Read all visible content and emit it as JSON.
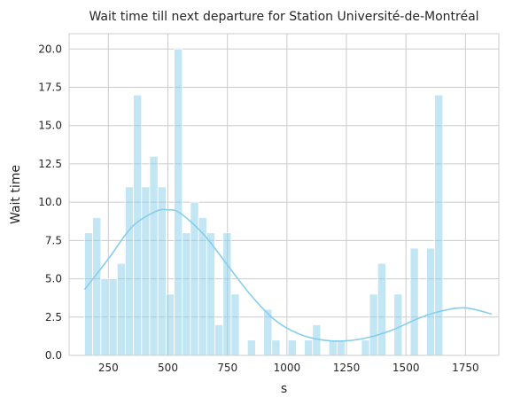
{
  "chart_data": {
    "type": "bar",
    "title": "Wait time till next departure for Station Université-de-Montréal",
    "xlabel": "s",
    "ylabel": "Wait time",
    "xlim": [
      85,
      1890
    ],
    "ylim": [
      0,
      21
    ],
    "grid": true,
    "bar_color": "#87ceeb",
    "kde_color": "#87ceeb",
    "xticks": [
      250,
      500,
      750,
      1000,
      1250,
      1500,
      1750
    ],
    "xtick_labels": [
      "250",
      "500",
      "750",
      "1000",
      "1250",
      "1500",
      "1750"
    ],
    "yticks": [
      0,
      2.5,
      5,
      7.5,
      10,
      12.5,
      15,
      17.5,
      20
    ],
    "ytick_labels": [
      "0.0",
      "2.5",
      "5.0",
      "7.5",
      "10.0",
      "12.5",
      "15.0",
      "17.5",
      "20.0"
    ],
    "bin_start": 150,
    "bin_width": 34.2,
    "values": [
      8,
      9,
      5,
      5,
      6,
      11,
      17,
      11,
      13,
      11,
      4,
      20,
      8,
      10,
      9,
      8,
      2,
      8,
      4,
      0,
      1,
      0,
      3,
      1,
      0,
      1,
      0,
      1,
      2,
      0,
      1,
      1,
      0,
      0,
      1,
      4,
      6,
      0,
      4,
      0,
      7,
      0,
      7,
      17
    ],
    "kde": {
      "x": [
        150,
        250,
        350,
        450,
        500,
        550,
        650,
        750,
        850,
        950,
        1050,
        1150,
        1250,
        1350,
        1450,
        1550,
        1650,
        1750,
        1860
      ],
      "y": [
        4.3,
        6.3,
        8.4,
        9.4,
        9.5,
        9.3,
        7.9,
        5.9,
        3.9,
        2.3,
        1.4,
        1.0,
        0.95,
        1.2,
        1.7,
        2.4,
        2.9,
        3.1,
        2.7
      ]
    }
  }
}
